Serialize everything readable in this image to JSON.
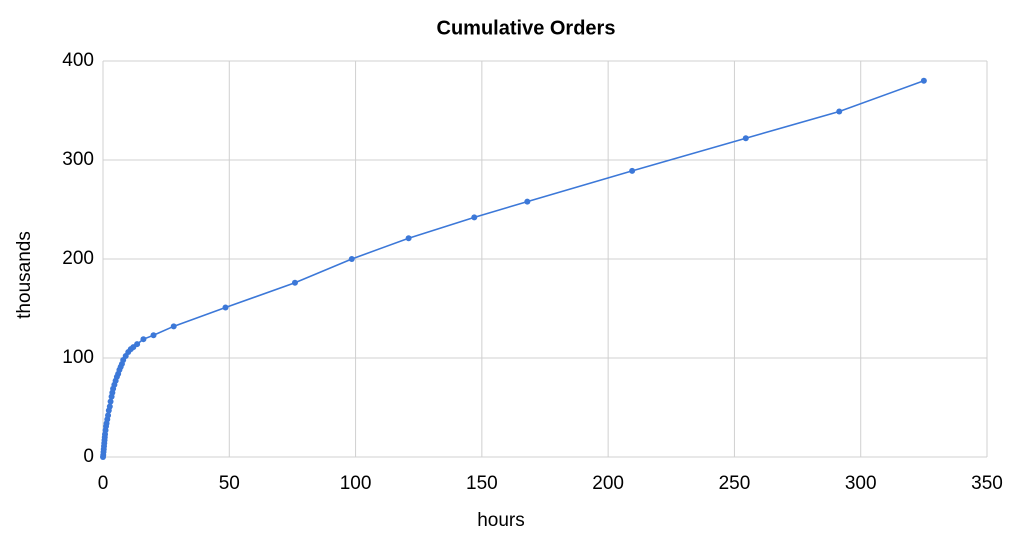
{
  "chart_data": {
    "type": "line",
    "title": "Cumulative Orders",
    "x_label": "hours",
    "y_label": "thousands",
    "series": [
      {
        "name": "Cumulative Orders",
        "color": "#3c78d8",
        "x": [
          0,
          0.1,
          0.2,
          0.3,
          0.4,
          0.5,
          0.6,
          0.7,
          0.8,
          1,
          1.2,
          1.4,
          1.7,
          2,
          2.3,
          2.7,
          3,
          3.4,
          3.7,
          4,
          4.5,
          5,
          5.5,
          6,
          6.5,
          7,
          7.5,
          8,
          9,
          10,
          11,
          12,
          13.5,
          16,
          20,
          28,
          48.5,
          76,
          98.5,
          121,
          147,
          168,
          209.5,
          254.5,
          291.5,
          325
        ],
        "values": [
          0,
          2,
          5,
          8,
          11,
          14,
          17,
          20,
          23,
          27,
          31,
          34,
          38,
          42,
          47,
          51,
          56,
          61,
          65,
          69,
          73,
          77,
          81,
          84,
          88,
          91,
          94,
          98,
          102,
          106,
          109,
          111,
          114,
          119,
          123,
          132,
          151,
          176,
          200,
          221,
          242,
          258,
          289,
          322,
          349,
          380
        ]
      }
    ],
    "xlim": [
      0,
      350
    ],
    "xticks": [
      0,
      50,
      100,
      150,
      200,
      250,
      300,
      350
    ],
    "ylim": [
      0,
      400
    ],
    "yticks": [
      0,
      100,
      200,
      300,
      400
    ],
    "grid": true
  }
}
